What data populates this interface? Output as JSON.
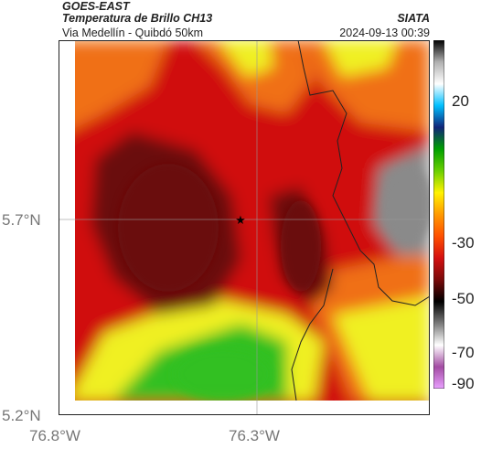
{
  "header": {
    "satellite": "GOES-EAST",
    "product": "Temperatura de Brillo CH13",
    "region": "Via Medellín - Quibdó 50km",
    "source": "SIATA",
    "timestamp": "2024-09-13 00:39"
  },
  "axes": {
    "x_ticks": [
      "76.8°W",
      "76.3°W"
    ],
    "y_ticks": [
      "5.7°N",
      "5.2°N"
    ]
  },
  "colorbar": {
    "labels": [
      "20",
      "-30",
      "-50",
      "-70",
      "-90"
    ],
    "stops": [
      "#e9a0ff",
      "#a34ca3",
      "#ffffff",
      "#7a7a7a",
      "#000000",
      "#7a0a0a",
      "#d51010",
      "#ff5000",
      "#ff9a00",
      "#fff200",
      "#6ad000",
      "#00a000",
      "#10247a",
      "#00c0ff",
      "#ffffff",
      "#b0b0b0",
      "#000000"
    ]
  },
  "map": {
    "marker": "star",
    "colors": {
      "dark_red": "#6b0b0b",
      "red": "#d01010",
      "orange": "#f07018",
      "yellow": "#f0f020",
      "green": "#30c020",
      "gray": "#8a8a8a"
    }
  }
}
